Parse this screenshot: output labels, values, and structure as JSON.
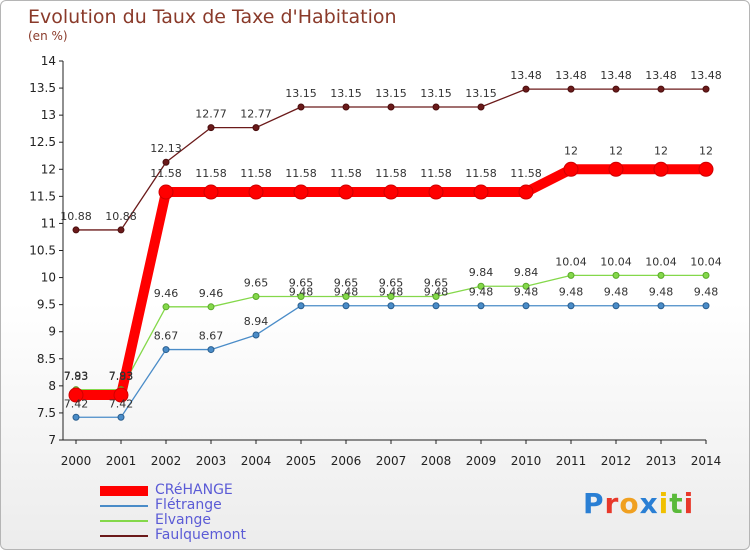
{
  "chart_data": {
    "type": "line",
    "title": "Evolution du Taux de Taxe d'Habitation",
    "subtitle": "(en %)",
    "x": [
      "2000",
      "2001",
      "2002",
      "2003",
      "2004",
      "2005",
      "2006",
      "2007",
      "2008",
      "2009",
      "2010",
      "2011",
      "2012",
      "2013",
      "2014"
    ],
    "ylim": [
      7,
      14
    ],
    "yticks": [
      "7",
      "7.5",
      "8",
      "8.5",
      "9",
      "9.5",
      "10",
      "10.5",
      "11",
      "11.5",
      "12",
      "12.5",
      "13",
      "13.5",
      "14"
    ],
    "grid": false,
    "legend_position": "bottom-left",
    "series": [
      {
        "name": "CRéHANGE",
        "color": "#ff0000",
        "values": [
          7.83,
          7.83,
          11.58,
          11.58,
          11.58,
          11.58,
          11.58,
          11.58,
          11.58,
          11.58,
          11.58,
          12,
          12,
          12,
          12
        ]
      },
      {
        "name": "Flétrange",
        "color": "#4a8cc8",
        "values": [
          7.42,
          7.42,
          8.67,
          8.67,
          8.94,
          9.48,
          9.48,
          9.48,
          9.48,
          9.48,
          9.48,
          9.48,
          9.48,
          9.48,
          9.48
        ]
      },
      {
        "name": "Elvange",
        "color": "#84d84a",
        "values": [
          7.93,
          7.93,
          9.46,
          9.46,
          9.65,
          9.65,
          9.65,
          9.65,
          9.65,
          9.84,
          9.84,
          10.04,
          10.04,
          10.04,
          10.04
        ]
      },
      {
        "name": "Faulquemont",
        "color": "#6b1a1a",
        "values": [
          10.88,
          10.88,
          12.13,
          12.77,
          12.77,
          13.15,
          13.15,
          13.15,
          13.15,
          13.15,
          13.48,
          13.48,
          13.48,
          13.48,
          13.48
        ]
      }
    ],
    "data_labels": {
      "CRéHANGE": [
        "7.83",
        "7.83",
        "11.58",
        "11.58",
        "11.58",
        "11.58",
        "11.58",
        "11.58",
        "11.58",
        "11.58",
        "11.58",
        "12",
        "12",
        "12",
        "12"
      ],
      "Flétrange": [
        "7.42",
        "7.42",
        "8.67",
        "8.67",
        "8.94",
        "9.48",
        "9.48",
        "9.48",
        "9.48",
        "9.48",
        "9.48",
        "9.48",
        "9.48",
        "9.48",
        "9.48"
      ],
      "Elvange": [
        "7.93",
        "7.93",
        "9.46",
        "9.46",
        "9.65",
        "9.65",
        "9.65",
        "9.65",
        "9.65",
        "9.84",
        "9.84",
        "10.04",
        "10.04",
        "10.04",
        "10.04"
      ],
      "Faulquemont": [
        "10.88",
        "10.88",
        "12.13",
        "12.77",
        "12.77",
        "13.15",
        "13.15",
        "13.15",
        "13.15",
        "13.15",
        "13.48",
        "13.48",
        "13.48",
        "13.48",
        "13.48"
      ]
    }
  },
  "branding": {
    "logo_text": "Proxiti",
    "logo_letters": [
      {
        "ch": "P",
        "color": "#2a7fd4"
      },
      {
        "ch": "r",
        "color": "#e8382a"
      },
      {
        "ch": "o",
        "color": "#f0a020"
      },
      {
        "ch": "x",
        "color": "#2a7fd4"
      },
      {
        "ch": "i",
        "color": "#f0c000"
      },
      {
        "ch": "t",
        "color": "#5aba3a"
      },
      {
        "ch": "i",
        "color": "#e8382a"
      }
    ]
  }
}
